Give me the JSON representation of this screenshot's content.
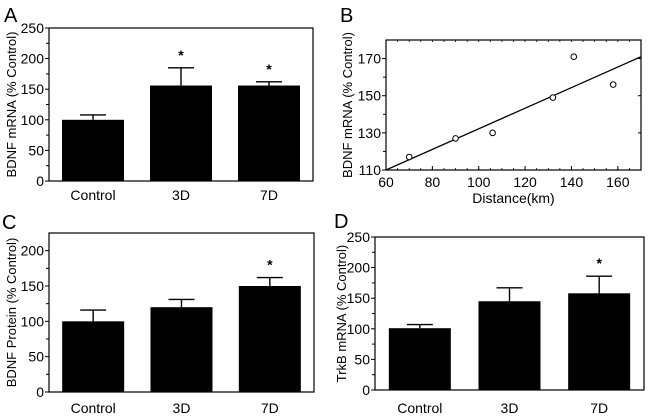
{
  "chart_data": [
    {
      "panel": "A",
      "type": "bar",
      "title": "",
      "xlabel": "",
      "ylabel": "BDNF mRNA (% Control)",
      "categories": [
        "Control",
        "3D",
        "7D"
      ],
      "values": [
        100,
        156,
        156
      ],
      "error_upper": [
        108,
        185,
        162
      ],
      "significant": [
        false,
        true,
        true
      ],
      "ylim": [
        0,
        250
      ],
      "yticks": [
        0,
        50,
        100,
        150,
        200,
        250
      ],
      "significance_marker": "*",
      "grid": false
    },
    {
      "panel": "B",
      "type": "scatter",
      "title": "",
      "xlabel": "Distance(km)",
      "ylabel": "BDNF mRNA (%  Control)",
      "x": [
        70,
        90,
        106,
        132,
        141,
        158
      ],
      "y": [
        117,
        127,
        130,
        149,
        171,
        156
      ],
      "fit_line": {
        "x": [
          60,
          170
        ],
        "y": [
          110,
          171
        ]
      },
      "xlim": [
        60,
        170
      ],
      "ylim": [
        110,
        180
      ],
      "xticks": [
        60,
        80,
        100,
        120,
        140,
        160
      ],
      "yticks": [
        110,
        130,
        150,
        170
      ],
      "grid": false
    },
    {
      "panel": "C",
      "type": "bar",
      "title": "",
      "xlabel": "",
      "ylabel": "BDNF Protein (% Control)",
      "categories": [
        "Control",
        "3D",
        "7D"
      ],
      "values": [
        100,
        120,
        150
      ],
      "error_upper": [
        116,
        131,
        162
      ],
      "significant": [
        false,
        false,
        true
      ],
      "ylim": [
        0,
        225
      ],
      "yticks": [
        0,
        50,
        100,
        150,
        200
      ],
      "significance_marker": "*",
      "grid": false
    },
    {
      "panel": "D",
      "type": "bar",
      "title": "",
      "xlabel": "",
      "ylabel": "TrkB  mRNA (% Control)",
      "categories": [
        "Control",
        "3D",
        "7D"
      ],
      "values": [
        101,
        145,
        158
      ],
      "error_upper": [
        107,
        167,
        186
      ],
      "significant": [
        false,
        false,
        true
      ],
      "ylim": [
        0,
        250
      ],
      "yticks": [
        0,
        50,
        100,
        150,
        200,
        250
      ],
      "significance_marker": "*",
      "grid": false
    }
  ]
}
